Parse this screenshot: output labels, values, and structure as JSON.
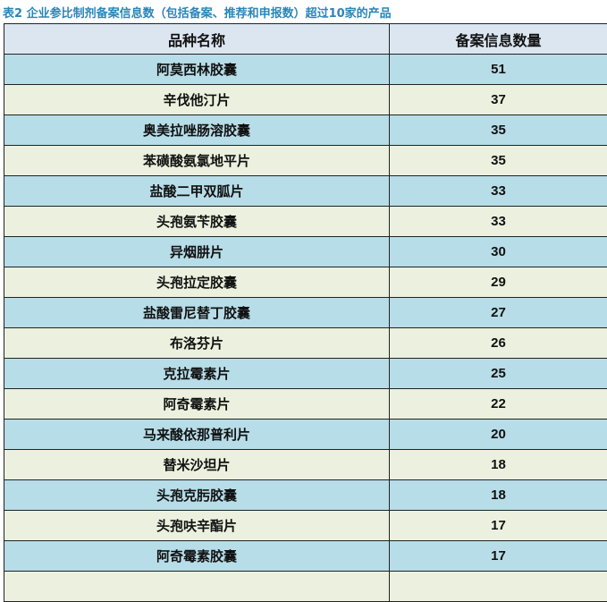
{
  "title": "表2 企业参比制剂备案信息数（包括备案、推荐和申报数）超过10家的产品",
  "colors": {
    "header_bg": "#dce6f1",
    "row_blue": "#b7dde8",
    "row_cream": "#ebf1de",
    "title": "#2a86b8"
  },
  "headers": [
    "品种名称",
    "备案信息数量"
  ],
  "rows": [
    {
      "name": "阿莫西林胶囊",
      "count": "51"
    },
    {
      "name": "辛伐他汀片",
      "count": "37"
    },
    {
      "name": "奥美拉唑肠溶胶囊",
      "count": "35"
    },
    {
      "name": "苯磺酸氨氯地平片",
      "count": "35"
    },
    {
      "name": "盐酸二甲双胍片",
      "count": "33"
    },
    {
      "name": "头孢氨苄胶囊",
      "count": "33"
    },
    {
      "name": "异烟肼片",
      "count": "30"
    },
    {
      "name": "头孢拉定胶囊",
      "count": "29"
    },
    {
      "name": "盐酸雷尼替丁胶囊",
      "count": "27"
    },
    {
      "name": "布洛芬片",
      "count": "26"
    },
    {
      "name": "克拉霉素片",
      "count": "25"
    },
    {
      "name": "阿奇霉素片",
      "count": "22"
    },
    {
      "name": "马来酸依那普利片",
      "count": "20"
    },
    {
      "name": "替米沙坦片",
      "count": "18"
    },
    {
      "name": "头孢克肟胶囊",
      "count": "18"
    },
    {
      "name": "头孢呋辛酯片",
      "count": "17"
    },
    {
      "name": "阿奇霉素胶囊",
      "count": "17"
    }
  ]
}
